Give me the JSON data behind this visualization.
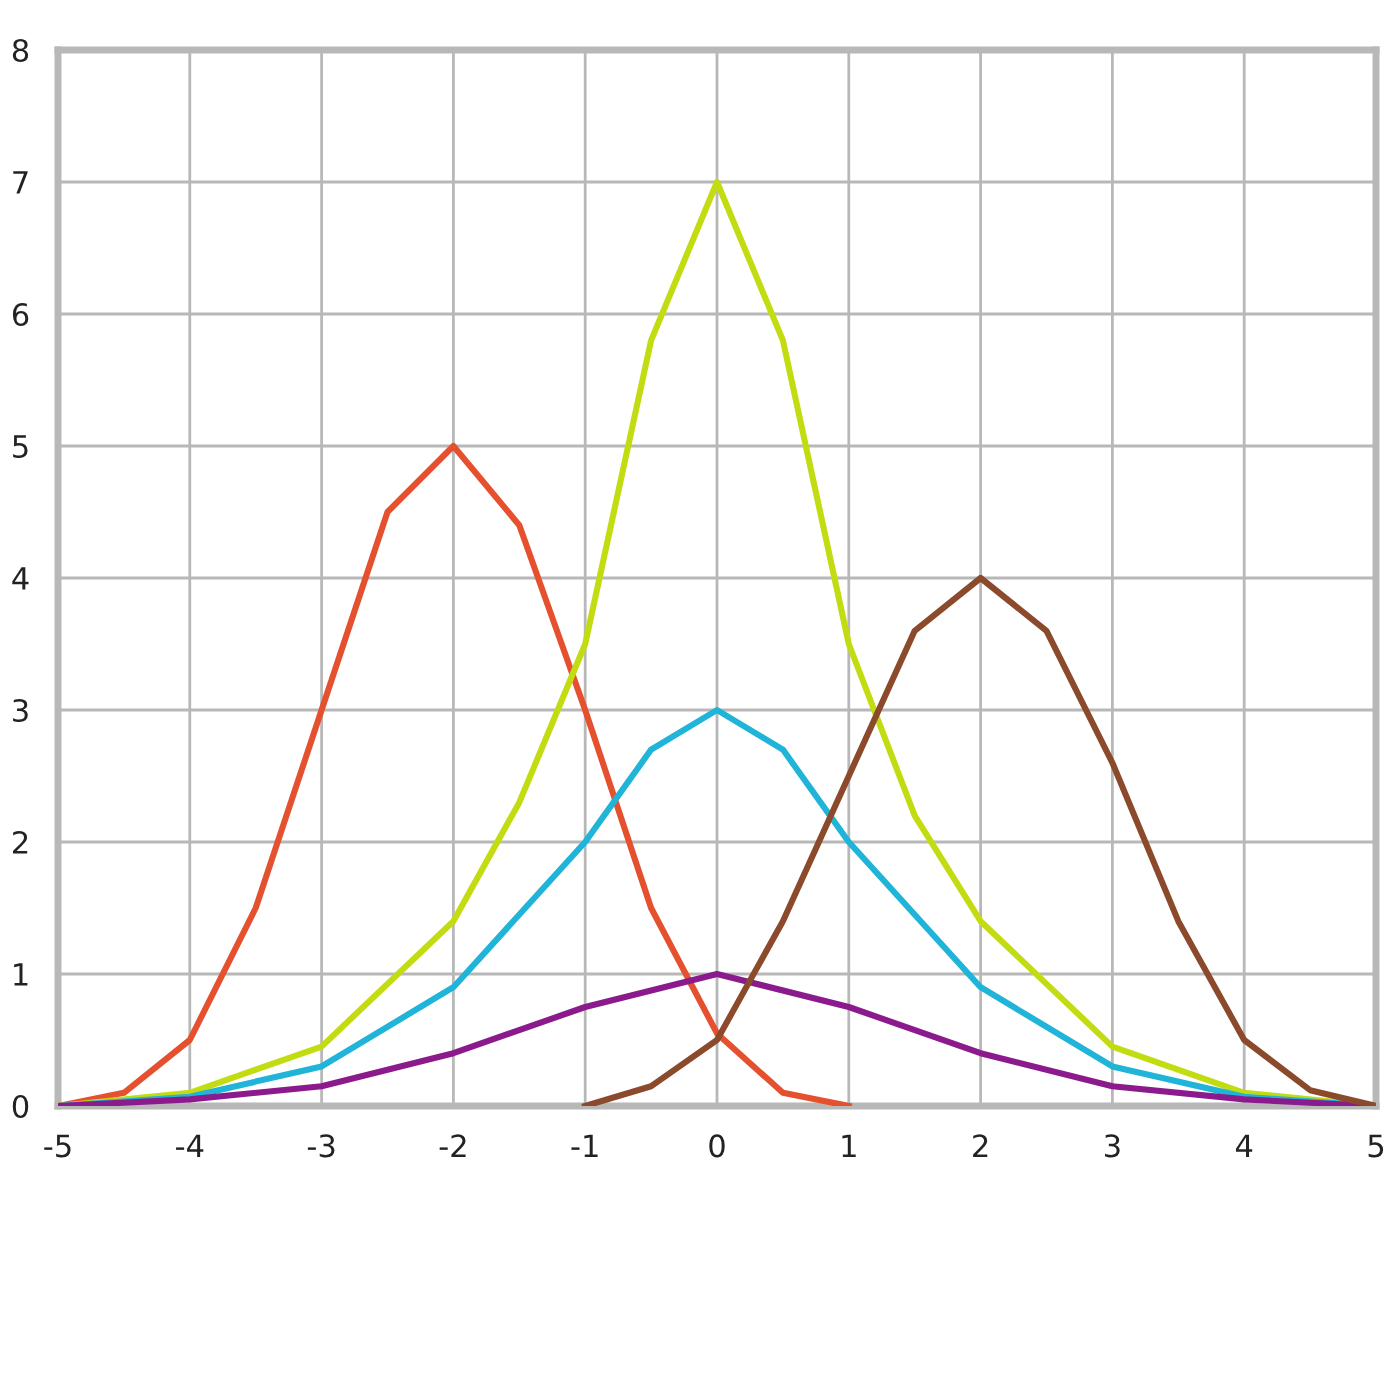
{
  "chart_data": {
    "type": "line",
    "xlim": [
      -5,
      5
    ],
    "ylim": [
      0,
      8
    ],
    "xticks": [
      -5,
      -4,
      -3,
      -2,
      -1,
      0,
      1,
      2,
      3,
      4,
      5
    ],
    "yticks": [
      0,
      1,
      2,
      3,
      4,
      5,
      6,
      7,
      8
    ],
    "grid": true,
    "line_style": "solid",
    "series": [
      {
        "color": "#e5512f",
        "x": [
          -5,
          -4.5,
          -4,
          -3.5,
          -3,
          -2.5,
          -2,
          -1.5,
          -1,
          -0.5,
          0,
          0.5,
          1
        ],
        "values": [
          0,
          0.1,
          0.5,
          1.5,
          3,
          4.5,
          5,
          4.4,
          3,
          1.5,
          0.55,
          0.1,
          0
        ]
      },
      {
        "color": "#c3dc12",
        "x": [
          -5,
          -4,
          -3,
          -2,
          -1.5,
          -1,
          -0.5,
          0,
          0.5,
          1,
          1.5,
          2,
          3,
          4,
          5
        ],
        "values": [
          0,
          0.1,
          0.45,
          1.4,
          2.3,
          3.5,
          5.8,
          7,
          5.8,
          3.5,
          2.2,
          1.4,
          0.45,
          0.1,
          0
        ]
      },
      {
        "color": "#1fb4d8",
        "x": [
          -5,
          -4,
          -3,
          -2,
          -1,
          -0.5,
          0,
          0.5,
          1,
          2,
          3,
          4,
          5
        ],
        "values": [
          0,
          0.07,
          0.3,
          0.9,
          2.0,
          2.7,
          3,
          2.7,
          2.0,
          0.9,
          0.3,
          0.07,
          0
        ]
      },
      {
        "color": "#8b1a8c",
        "x": [
          -5,
          -4,
          -3,
          -2,
          -1,
          0,
          1,
          2,
          3,
          4,
          5
        ],
        "values": [
          0,
          0.05,
          0.15,
          0.4,
          0.75,
          1,
          0.75,
          0.4,
          0.15,
          0.05,
          0
        ]
      },
      {
        "color": "#8b4a2b",
        "x": [
          -1,
          -0.5,
          0,
          0.5,
          1,
          1.5,
          2,
          2.5,
          3,
          3.5,
          4,
          4.5,
          5
        ],
        "values": [
          0,
          0.15,
          0.5,
          1.4,
          2.5,
          3.6,
          4,
          3.6,
          2.6,
          1.4,
          0.5,
          0.12,
          0
        ]
      }
    ]
  }
}
